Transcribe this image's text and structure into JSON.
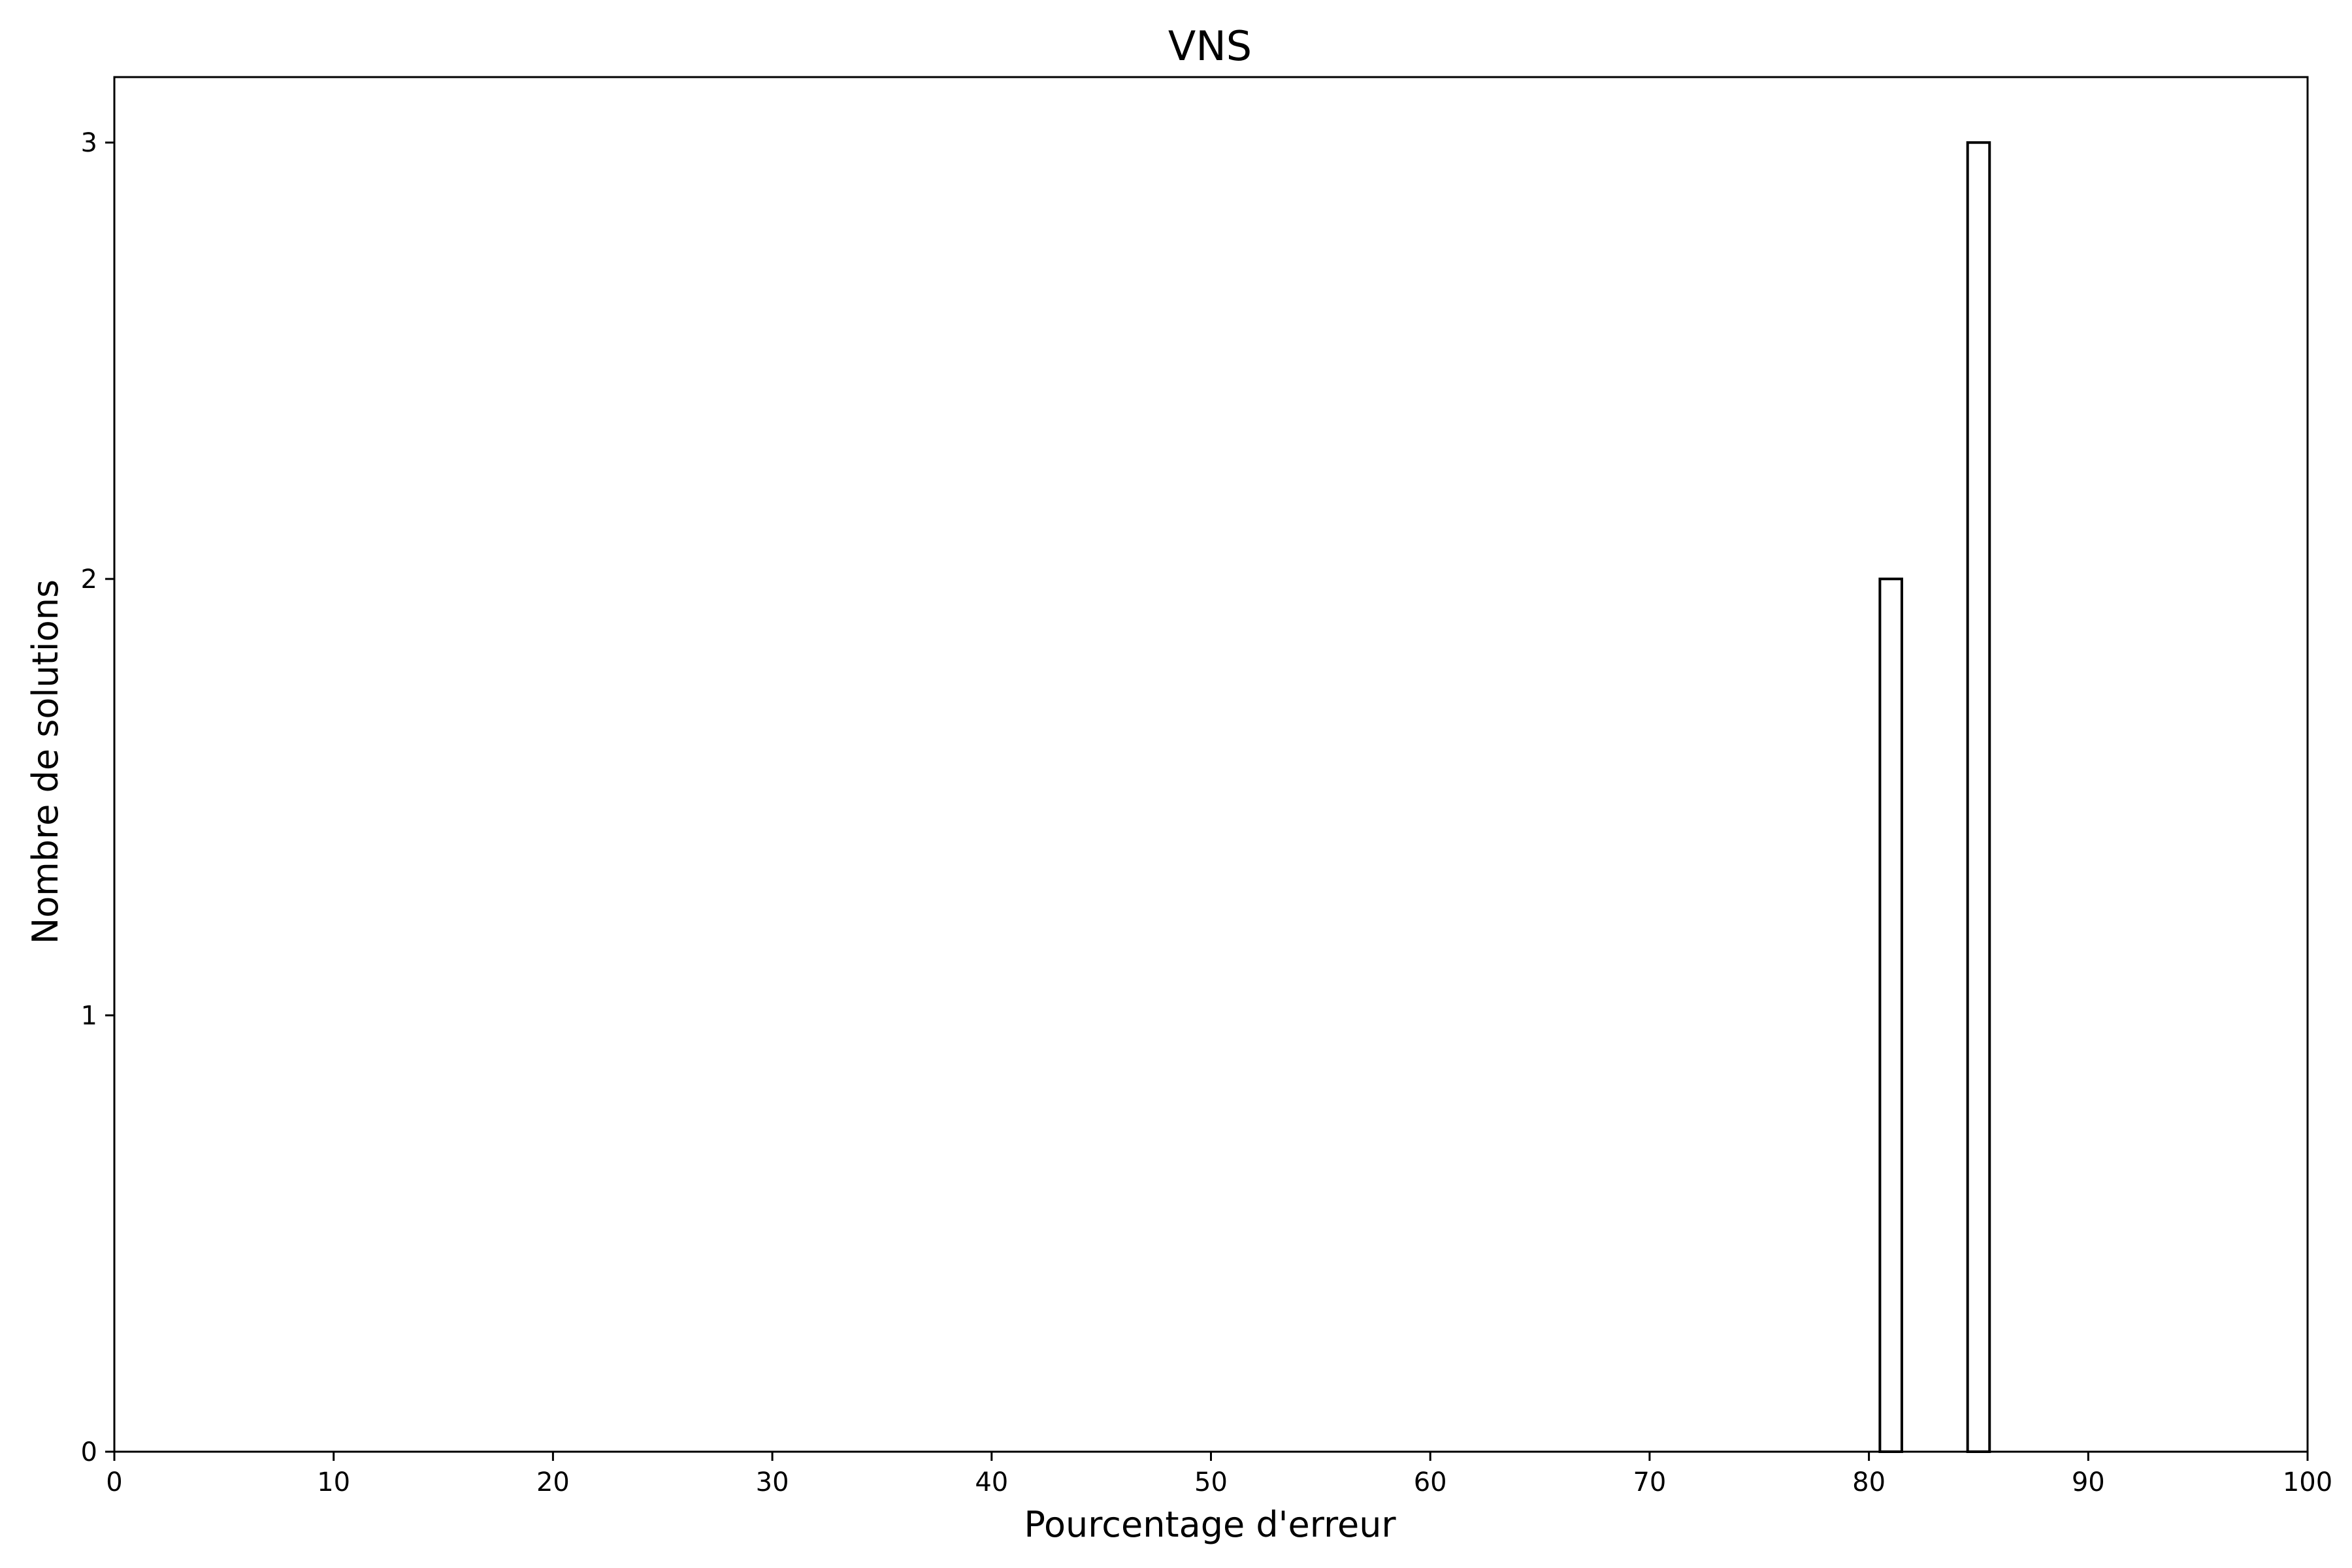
{
  "chart_data": {
    "type": "bar",
    "title": "VNS",
    "xlabel": "Pourcentage d'erreur",
    "ylabel": "Nombre de solutions",
    "xlim": [
      0,
      100
    ],
    "ylim": [
      0,
      3.15
    ],
    "xticks": [
      0,
      10,
      20,
      30,
      40,
      50,
      60,
      70,
      80,
      90,
      100
    ],
    "yticks": [
      0,
      1,
      2,
      3
    ],
    "bar_width": 1,
    "grid": false,
    "bars": [
      {
        "x": 81,
        "value": 2
      },
      {
        "x": 85,
        "value": 3
      }
    ]
  }
}
